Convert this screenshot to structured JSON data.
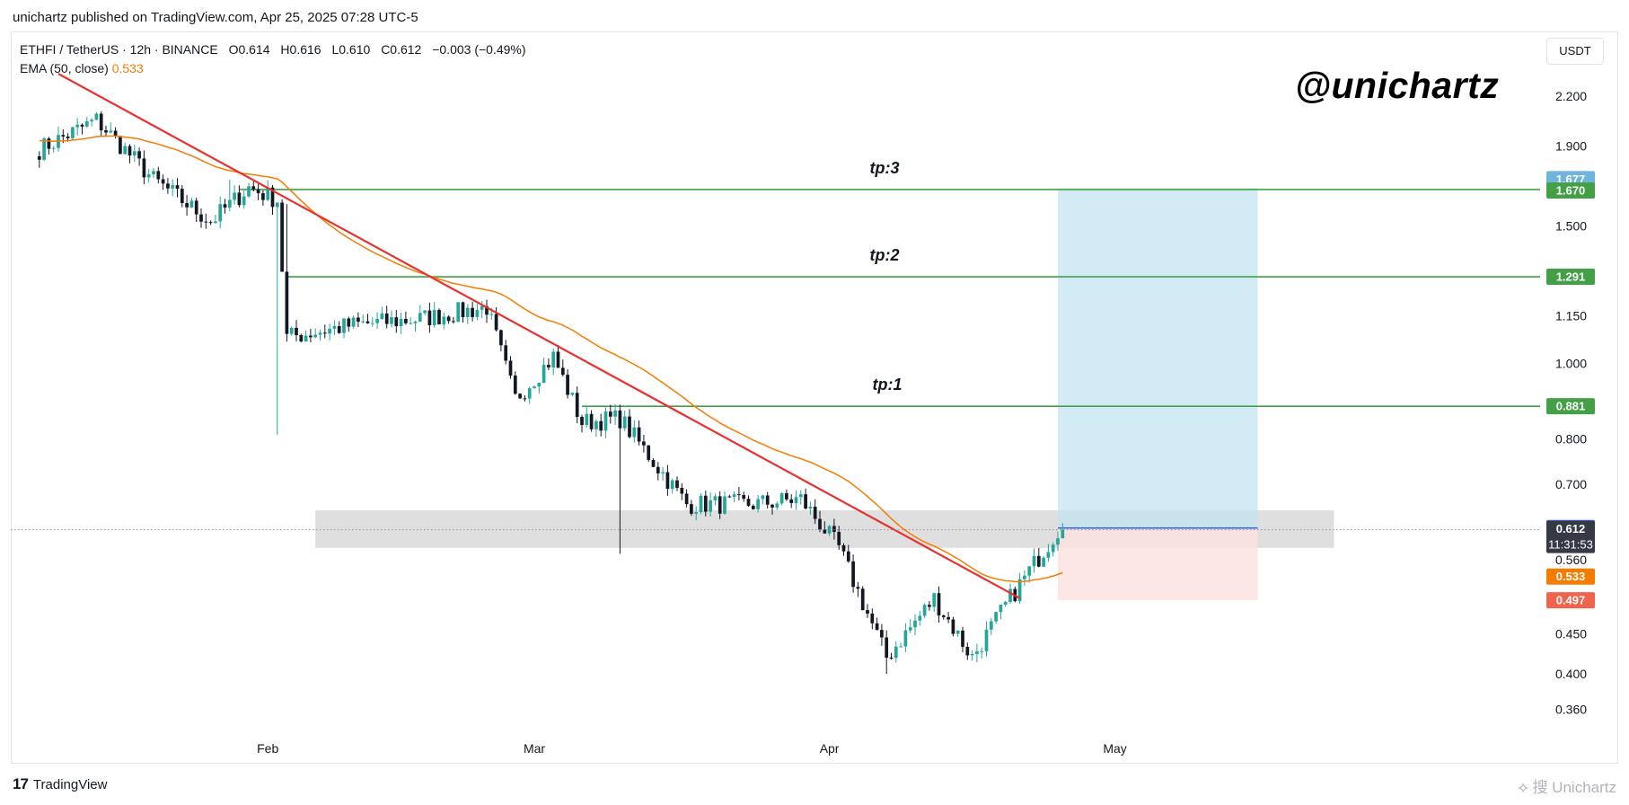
{
  "header": {
    "published": "unichartz published on TradingView.com, Apr 25, 2025 07:28 UTC-5"
  },
  "legend": {
    "symbol": "ETHFI / TetherUS · 12h · BINANCE",
    "open": "O0.614",
    "high": "H0.616",
    "low": "L0.610",
    "close": "C0.612",
    "change": "−0.003 (−0.49%)",
    "ema_label": "EMA (50, close)",
    "ema_value": "0.533"
  },
  "watermark": "@unichartz",
  "currency": "USDT",
  "footer": {
    "brand": "TradingView",
    "bottom_right_watermark": "⟡ 搜 Unichartz"
  },
  "colors": {
    "up": "#26a69a",
    "down": "#131722",
    "ema": "#f57c00",
    "trendline": "#e8312f",
    "target": "#43a047",
    "profit_zone": "#bfe3ef",
    "loss_zone": "#fbe3df",
    "sr_zone": "#d9d9d9",
    "last_price_label": "#363a45",
    "entry_label": "#2962ff",
    "stop_label": "#f0634d",
    "ema_label": "#f57c00",
    "tp_label": "#43a047",
    "tp3_top_label": "#6fb5db"
  },
  "chart_data": {
    "type": "candlestick",
    "timeframe": "12h",
    "x_ticks": [
      "Feb",
      "Mar",
      "Apr",
      "May"
    ],
    "y_ticks": [
      "2.200",
      "1.900",
      "1.500",
      "1.150",
      "1.000",
      "0.800",
      "0.700",
      "0.560",
      "0.450",
      "0.400",
      "0.360"
    ],
    "y_scale": "log",
    "ylim": [
      0.33,
      2.45
    ],
    "anchors": {
      "dates": [
        "2025-01-08",
        "2025-01-14",
        "2025-01-20",
        "2025-01-26",
        "2025-01-30",
        "2025-02-02",
        "2025-02-03",
        "2025-02-10",
        "2025-02-17",
        "2025-02-24",
        "2025-02-27",
        "2025-03-03",
        "2025-03-06",
        "2025-03-10",
        "2025-03-17",
        "2025-03-24",
        "2025-03-29",
        "2025-04-02",
        "2025-04-07",
        "2025-04-12",
        "2025-04-16",
        "2025-04-20",
        "2025-04-25"
      ],
      "closes": [
        1.88,
        2.05,
        1.72,
        1.52,
        1.68,
        1.62,
        1.08,
        1.12,
        1.14,
        1.18,
        0.9,
        1.02,
        0.84,
        0.85,
        0.66,
        0.66,
        0.67,
        0.58,
        0.42,
        0.5,
        0.42,
        0.5,
        0.612
      ]
    },
    "series": [
      {
        "name": "EMA (50, close)",
        "last_value": 0.533
      }
    ],
    "trendline": {
      "start": [
        "2025-01-10",
        2.35
      ],
      "end": [
        "2025-04-21",
        0.5
      ]
    },
    "targets": [
      {
        "label": "tp:1",
        "price": 0.881,
        "from": "2025-03-06"
      },
      {
        "label": "tp:2",
        "price": 1.291,
        "from": "2025-02-03"
      },
      {
        "label": "tp:3",
        "price": 1.67,
        "from": "2025-01-29"
      }
    ],
    "sr_zone": {
      "low": 0.58,
      "high": 0.648,
      "from": "2025-02-06",
      "to": "2025-05-24"
    },
    "position": {
      "entry": 0.615,
      "stop": 0.497,
      "target": 1.677,
      "from": "2025-04-25",
      "to": "2025-05-16"
    },
    "price_labels": [
      {
        "value": "1.677",
        "kind": "tp3_top"
      },
      {
        "value": "1.670",
        "kind": "tp"
      },
      {
        "value": "1.291",
        "kind": "tp"
      },
      {
        "value": "0.881",
        "kind": "tp"
      },
      {
        "value": "0.615",
        "kind": "entry"
      },
      {
        "value": "0.612",
        "kind": "last",
        "countdown": "11:31:53"
      },
      {
        "value": "0.533",
        "kind": "ema"
      },
      {
        "value": "0.497",
        "kind": "stop"
      }
    ],
    "last_price": 0.612
  }
}
